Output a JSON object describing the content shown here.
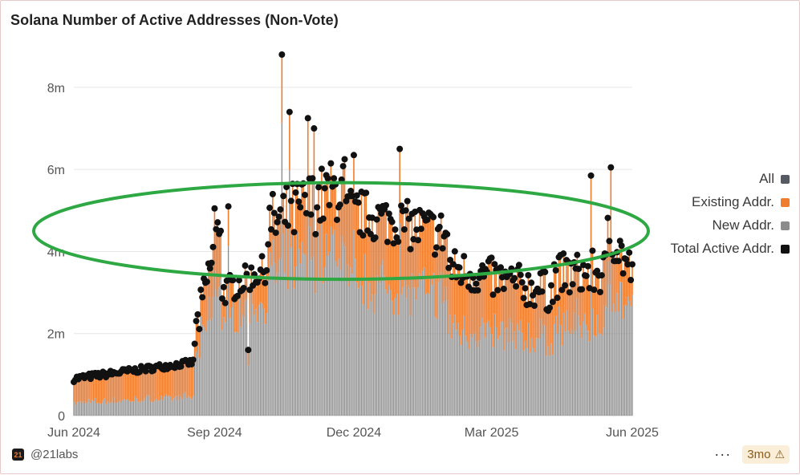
{
  "header": {
    "title": "Solana Number of Active Addresses (Non-Vote)"
  },
  "footer": {
    "brand_label": "@21labs",
    "brand_icon": "21labs-logo-icon",
    "more_label": "···",
    "badge_label": "3mo",
    "badge_icon": "warning-icon"
  },
  "colors": {
    "all": "#555a63",
    "existing": "#f07c2e",
    "new": "#8c8c8c",
    "total": "#111111",
    "gridline": "#e6e6e6",
    "highlight_ellipse": "#2da843"
  },
  "chart_data": {
    "type": "bar",
    "title": "Solana Number of Active Addresses (Non-Vote)",
    "xlabel": "",
    "ylabel": "",
    "x_range": [
      "2024-06-01",
      "2025-06-01"
    ],
    "x_ticks": [
      "Jun 2024",
      "Sep 2024",
      "Dec 2024",
      "Mar 2025",
      "Jun 2025"
    ],
    "y_ticks": [
      "0",
      "2m",
      "4m",
      "6m",
      "8m"
    ],
    "ylim": [
      0,
      8800000
    ],
    "grid": true,
    "legend_position": "right",
    "series": [
      {
        "name": "All",
        "key": "all"
      },
      {
        "name": "Existing Addr.",
        "key": "existing"
      },
      {
        "name": "New Addr.",
        "key": "new"
      },
      {
        "name": "Total Active Addr.",
        "key": "total"
      }
    ],
    "segments": [
      {
        "from": "2024-06-01",
        "to": "2024-08-18",
        "total_start": 0.9,
        "total_end": 1.3,
        "new_share": 0.34,
        "noise": 0.08
      },
      {
        "from": "2024-08-19",
        "to": "2024-09-05",
        "total_start": 1.9,
        "total_end": 4.8,
        "new_share": 0.7,
        "noise": 0.5
      },
      {
        "from": "2024-09-06",
        "to": "2024-10-05",
        "total_start": 3.0,
        "total_end": 3.6,
        "new_share": 0.78,
        "noise": 0.35
      },
      {
        "from": "2024-10-06",
        "to": "2024-11-25",
        "total_start": 4.6,
        "total_end": 5.6,
        "new_share": 0.74,
        "noise": 0.8
      },
      {
        "from": "2024-11-26",
        "to": "2025-01-31",
        "total_start": 5.0,
        "total_end": 4.4,
        "new_share": 0.66,
        "noise": 0.6
      },
      {
        "from": "2025-02-01",
        "to": "2025-04-10",
        "total_start": 3.6,
        "total_end": 3.0,
        "new_share": 0.6,
        "noise": 0.5
      },
      {
        "from": "2025-04-11",
        "to": "2025-05-15",
        "total_start": 3.4,
        "total_end": 3.5,
        "new_share": 0.64,
        "noise": 0.55
      },
      {
        "from": "2025-05-16",
        "to": "2025-06-01",
        "total_start": 4.6,
        "total_end": 3.4,
        "new_share": 0.72,
        "noise": 0.6
      }
    ],
    "peaks": [
      {
        "date": "2024-09-01",
        "value": 5.05
      },
      {
        "date": "2024-09-10",
        "value": 5.1
      },
      {
        "date": "2024-09-23",
        "value": 1.6
      },
      {
        "date": "2024-10-15",
        "value": 8.8
      },
      {
        "date": "2024-10-20",
        "value": 7.4
      },
      {
        "date": "2024-11-01",
        "value": 7.25
      },
      {
        "date": "2024-11-05",
        "value": 7.0
      },
      {
        "date": "2024-12-01",
        "value": 6.35
      },
      {
        "date": "2024-12-31",
        "value": 6.5
      },
      {
        "date": "2025-04-05",
        "value": 3.5
      },
      {
        "date": "2025-05-05",
        "value": 5.85
      },
      {
        "date": "2025-05-18",
        "value": 6.05
      }
    ],
    "highlight_band": [
      3.4,
      5.6
    ]
  }
}
